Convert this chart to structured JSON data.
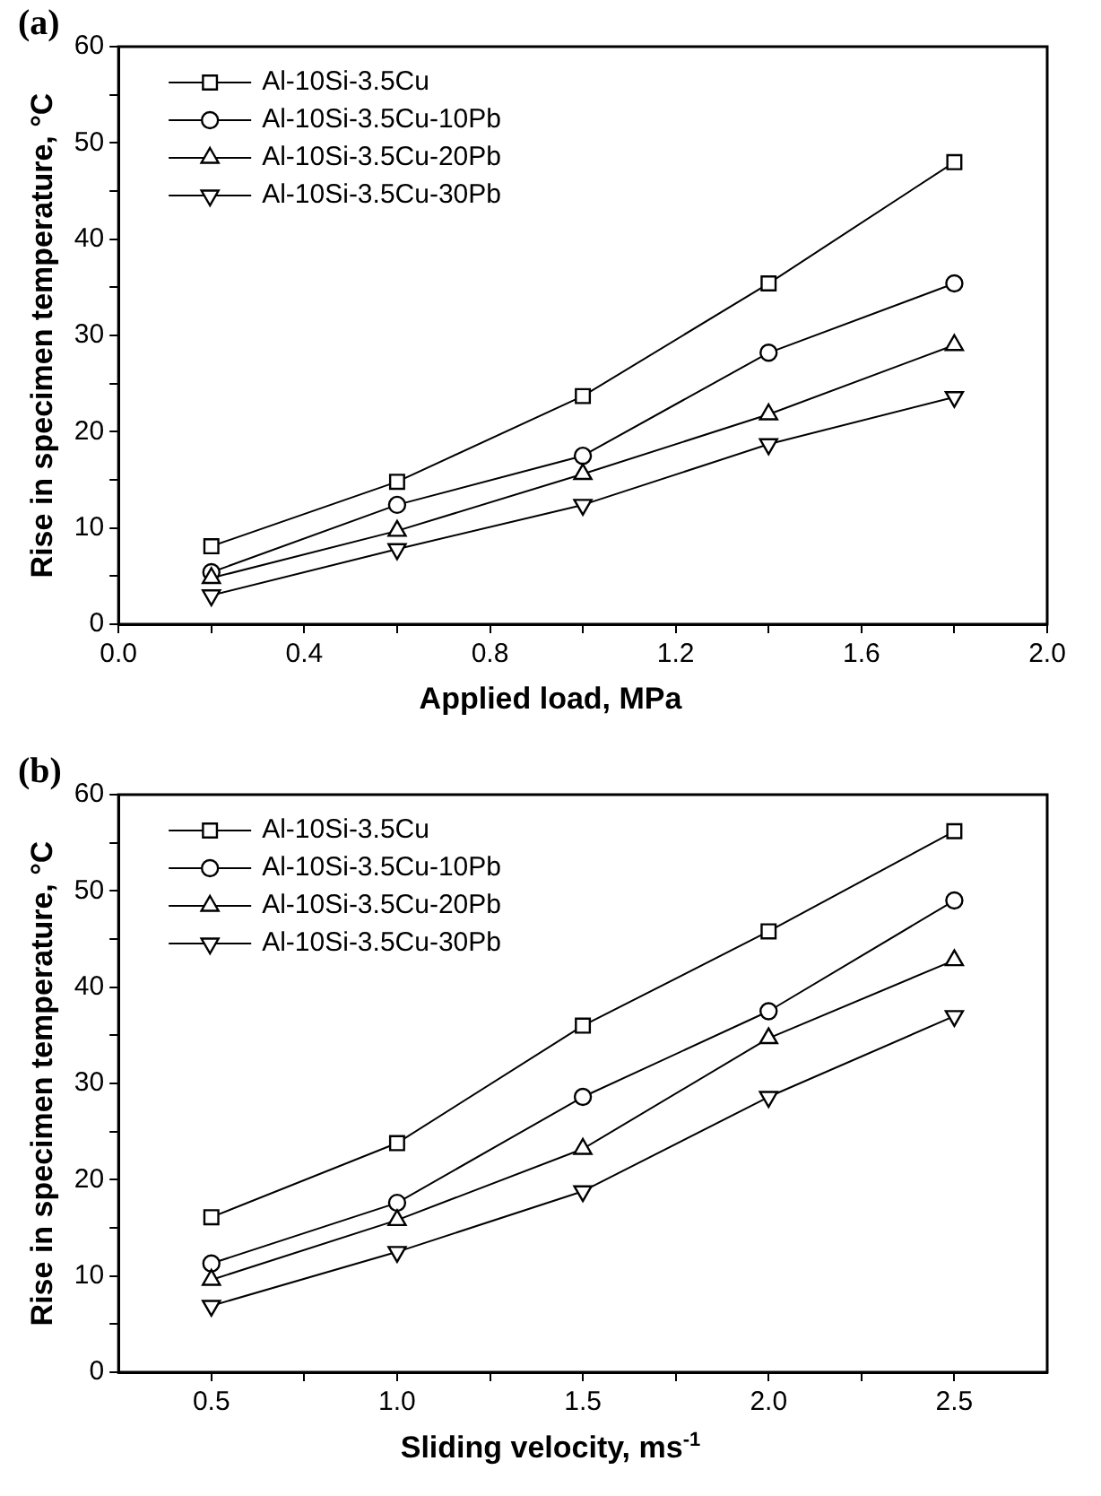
{
  "chart_data": [
    {
      "type": "line",
      "title": "(a)",
      "xlabel": "Applied load, MPa",
      "ylabel": "Rise in specimen temperature, °C",
      "x": [
        0.2,
        0.6,
        1.0,
        1.4,
        1.8
      ],
      "series": [
        {
          "name": "Al-10Si-3.5Cu",
          "color": "#000000",
          "marker": "square",
          "values": [
            8.1,
            14.8,
            23.7,
            35.4,
            48.0
          ]
        },
        {
          "name": "Al-10Si-3.5Cu-10Pb",
          "color": "#000000",
          "marker": "circle",
          "values": [
            5.4,
            12.4,
            17.5,
            28.2,
            35.4
          ]
        },
        {
          "name": "Al-10Si-3.5Cu-20Pb",
          "color": "#000000",
          "marker": "triangle",
          "values": [
            4.8,
            9.7,
            15.6,
            21.8,
            29.0
          ]
        },
        {
          "name": "Al-10Si-3.5Cu-30Pb",
          "color": "#000000",
          "marker": "triangle-down",
          "values": [
            3.0,
            7.8,
            12.4,
            18.7,
            23.6
          ]
        }
      ],
      "xlim": [
        0,
        2.0
      ],
      "xticks": [
        {
          "value": 0,
          "label": "0.0"
        },
        {
          "value": 0.2,
          "label": null
        },
        {
          "value": 0.4,
          "label": "0.4"
        },
        {
          "value": 0.6,
          "label": null
        },
        {
          "value": 0.8,
          "label": "0.8"
        },
        {
          "value": 1.0,
          "label": null
        },
        {
          "value": 1.2,
          "label": "1.2"
        },
        {
          "value": 1.4,
          "label": null
        },
        {
          "value": 1.6,
          "label": "1.6"
        },
        {
          "value": 1.8,
          "label": null
        },
        {
          "value": 2.0,
          "label": "2.0"
        }
      ],
      "ylim": [
        0,
        60
      ],
      "yticks": [
        0,
        {
          "value": 5,
          "label": null
        },
        10,
        {
          "value": 15,
          "label": null
        },
        20,
        {
          "value": 25,
          "label": null
        },
        30,
        {
          "value": 35,
          "label": null
        },
        40,
        {
          "value": 45,
          "label": null
        },
        50,
        {
          "value": 55,
          "label": null
        },
        60
      ],
      "grid": false,
      "legend": "top left",
      "line_style": "solid"
    },
    {
      "type": "line",
      "title": "(b)",
      "xlabel": "Sliding velocity, ms$^{-1}$",
      "ylabel": "Rise in specimen temperature, °C",
      "x": [
        0.5,
        1.0,
        1.5,
        2.0,
        2.5
      ],
      "series": [
        {
          "name": "Al-10Si-3.5Cu",
          "color": "#000000",
          "marker": "square",
          "values": [
            16.1,
            23.8,
            36.0,
            45.8,
            56.2
          ]
        },
        {
          "name": "Al-10Si-3.5Cu-10Pb",
          "color": "#000000",
          "marker": "circle",
          "values": [
            11.3,
            17.6,
            28.6,
            37.5,
            49.0
          ]
        },
        {
          "name": "Al-10Si-3.5Cu-20Pb",
          "color": "#000000",
          "marker": "triangle",
          "values": [
            9.6,
            15.8,
            23.2,
            34.7,
            42.8
          ]
        },
        {
          "name": "Al-10Si-3.5Cu-30Pb",
          "color": "#000000",
          "marker": "triangle-down",
          "values": [
            6.9,
            12.5,
            18.8,
            28.6,
            37.0
          ]
        }
      ],
      "xlim": [
        0.25,
        2.75
      ],
      "xticks": [
        {
          "value": 0.5,
          "label": "0.5"
        },
        {
          "value": 0.75,
          "label": null
        },
        {
          "value": 1.0,
          "label": "1.0"
        },
        {
          "value": 1.25,
          "label": null
        },
        {
          "value": 1.5,
          "label": "1.5"
        },
        {
          "value": 1.75,
          "label": null
        },
        {
          "value": 2.0,
          "label": "2.0"
        },
        {
          "value": 2.25,
          "label": null
        },
        {
          "value": 2.5,
          "label": "2.5"
        }
      ],
      "ylim": [
        0,
        60
      ],
      "yticks": [
        0,
        {
          "value": 5,
          "label": null
        },
        10,
        {
          "value": 15,
          "label": null
        },
        20,
        {
          "value": 25,
          "label": null
        },
        30,
        {
          "value": 35,
          "label": null
        },
        40,
        {
          "value": 45,
          "label": null
        },
        50,
        {
          "value": 55,
          "label": null
        },
        60
      ],
      "grid": false,
      "legend": "top left",
      "line_style": "solid"
    }
  ]
}
